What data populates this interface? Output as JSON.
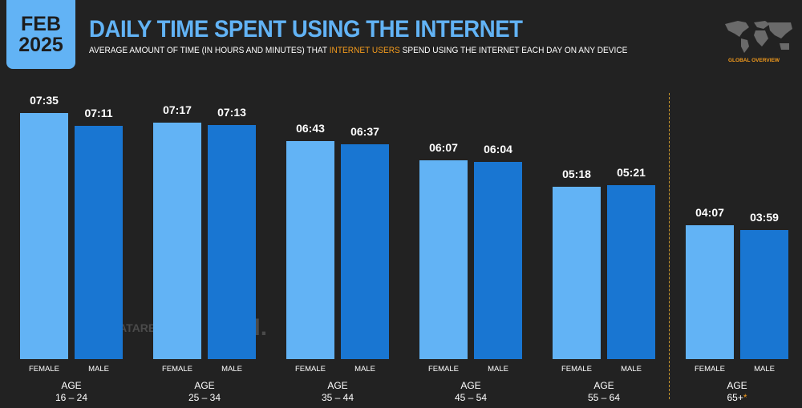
{
  "header": {
    "date_month": "FEB",
    "date_year": "2025",
    "title": "DAILY TIME SPENT USING THE INTERNET",
    "subtitle_pre": "AVERAGE AMOUNT OF TIME (IN HOURS AND MINUTES) THAT ",
    "subtitle_highlight": "INTERNET USERS",
    "subtitle_post": " SPEND USING THE INTERNET EACH DAY ON ANY DEVICE",
    "badge": "GLOBAL OVERVIEW",
    "map_icon": "world-map-icon"
  },
  "watermark": {
    "datareportal": "DATAREPORTAL",
    "gwi": "GWI."
  },
  "colors": {
    "female": "#62b3f5",
    "male": "#1976d2",
    "accent": "#f29a1d",
    "background": "#222222"
  },
  "chart_data": {
    "type": "bar",
    "group_title": "AGE",
    "categories": [
      "16 – 24",
      "25 – 34",
      "35 – 44",
      "45 – 54",
      "55 – 64",
      "65+"
    ],
    "footnote_marker": "*",
    "series": [
      {
        "name": "FEMALE",
        "values": [
          "07:35",
          "07:17",
          "06:43",
          "06:07",
          "05:18",
          "04:07"
        ]
      },
      {
        "name": "MALE",
        "values": [
          "07:11",
          "07:13",
          "06:37",
          "06:04",
          "05:21",
          "03:59"
        ]
      }
    ],
    "value_format": "hh:mm",
    "grid": false
  }
}
